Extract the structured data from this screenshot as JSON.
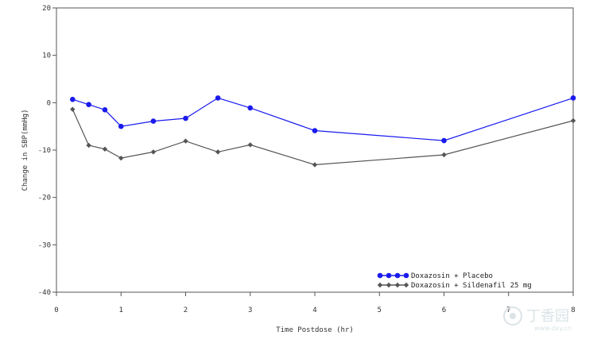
{
  "chart_data": {
    "type": "line",
    "title": "",
    "xlabel": "Time Postdose (hr)",
    "ylabel": "Change in SBP(mmHg)",
    "xlim": [
      0,
      8
    ],
    "ylim": [
      -40,
      20
    ],
    "x_ticks": [
      0,
      1,
      2,
      3,
      4,
      5,
      6,
      7,
      8
    ],
    "y_ticks": [
      20,
      10,
      0,
      -10,
      -20,
      -30,
      -40
    ],
    "grid": false,
    "legend_position": "bottom-right",
    "series": [
      {
        "name": "Doxazosin + Placebo",
        "color": "#1a1aee",
        "marker": "circle",
        "points": [
          {
            "x": 0.25,
            "y": 0.7
          },
          {
            "x": 0.5,
            "y": -0.4
          },
          {
            "x": 0.75,
            "y": -1.5
          },
          {
            "x": 1,
            "y": -5
          },
          {
            "x": 1.5,
            "y": -3.9
          },
          {
            "x": 2,
            "y": -3.3
          },
          {
            "x": 2.5,
            "y": 1
          },
          {
            "x": 3,
            "y": -1.1
          },
          {
            "x": 4,
            "y": -5.9
          },
          {
            "x": 6,
            "y": -8
          },
          {
            "x": 8,
            "y": 1
          }
        ]
      },
      {
        "name": "Doxazosin + Sildenafil 25 mg",
        "color": "#555555",
        "marker": "diamond",
        "points": [
          {
            "x": 0.25,
            "y": -1.4
          },
          {
            "x": 0.5,
            "y": -9
          },
          {
            "x": 0.75,
            "y": -9.8
          },
          {
            "x": 1,
            "y": -11.7
          },
          {
            "x": 1.5,
            "y": -10.4
          },
          {
            "x": 2,
            "y": -8.1
          },
          {
            "x": 2.5,
            "y": -10.4
          },
          {
            "x": 3,
            "y": -8.9
          },
          {
            "x": 4,
            "y": -13.1
          },
          {
            "x": 6,
            "y": -11
          },
          {
            "x": 8,
            "y": -3.8
          }
        ]
      }
    ]
  },
  "watermark": {
    "text": "丁香园",
    "url": "www.dxy.cn",
    "icon": "dxy-logo-icon"
  }
}
